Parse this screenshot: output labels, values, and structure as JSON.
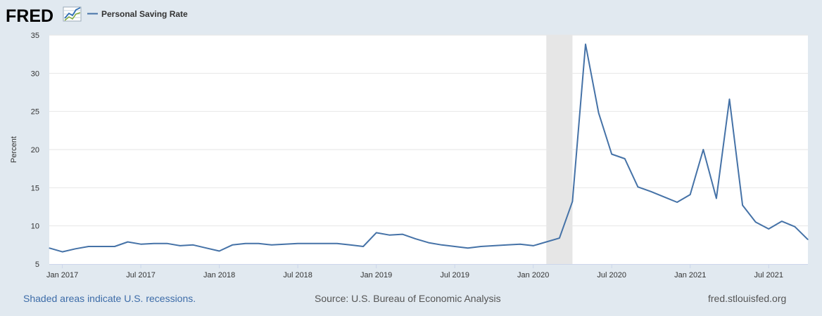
{
  "brand": {
    "logo_text": "FRED",
    "logo_icon": "trend-line-chart-icon"
  },
  "colors": {
    "background": "#e1e9f0",
    "plot_background": "#ffffff",
    "series": "#4572a7",
    "recession_shade": "#e6e6e6",
    "grid": "#e6e6e6",
    "link": "#3d6ca8",
    "text": "#333333",
    "muted": "#555555"
  },
  "footer": {
    "recession_note": "Shaded areas indicate U.S. recessions.",
    "source": "Source: U.S. Bureau of Economic Analysis",
    "site": "fred.stlouisfed.org"
  },
  "chart_data": {
    "type": "line",
    "title": "",
    "ylabel": "Percent",
    "xlabel": "",
    "xlim": [
      "2016-12",
      "2021-10"
    ],
    "ylim": [
      5,
      35
    ],
    "y_ticks": [
      5,
      10,
      15,
      20,
      25,
      30,
      35
    ],
    "x_ticks": [
      {
        "date": "2017-01",
        "label": "Jan 2017"
      },
      {
        "date": "2017-07",
        "label": "Jul 2017"
      },
      {
        "date": "2018-01",
        "label": "Jan 2018"
      },
      {
        "date": "2018-07",
        "label": "Jul 2018"
      },
      {
        "date": "2019-01",
        "label": "Jan 2019"
      },
      {
        "date": "2019-07",
        "label": "Jul 2019"
      },
      {
        "date": "2020-01",
        "label": "Jan 2020"
      },
      {
        "date": "2020-07",
        "label": "Jul 2020"
      },
      {
        "date": "2021-01",
        "label": "Jan 2021"
      },
      {
        "date": "2021-07",
        "label": "Jul 2021"
      }
    ],
    "grid": "horizontal",
    "legend": "top-left",
    "recessions": [
      {
        "start": "2020-02",
        "end": "2020-04"
      }
    ],
    "series": [
      {
        "name": "Personal Saving Rate",
        "x": [
          "2016-12",
          "2017-01",
          "2017-02",
          "2017-03",
          "2017-04",
          "2017-05",
          "2017-06",
          "2017-07",
          "2017-08",
          "2017-09",
          "2017-10",
          "2017-11",
          "2017-12",
          "2018-01",
          "2018-02",
          "2018-03",
          "2018-04",
          "2018-05",
          "2018-06",
          "2018-07",
          "2018-08",
          "2018-09",
          "2018-10",
          "2018-11",
          "2018-12",
          "2019-01",
          "2019-02",
          "2019-03",
          "2019-04",
          "2019-05",
          "2019-06",
          "2019-07",
          "2019-08",
          "2019-09",
          "2019-10",
          "2019-11",
          "2019-12",
          "2020-01",
          "2020-02",
          "2020-03",
          "2020-04",
          "2020-05",
          "2020-06",
          "2020-07",
          "2020-08",
          "2020-09",
          "2020-10",
          "2020-11",
          "2020-12",
          "2021-01",
          "2021-02",
          "2021-03",
          "2021-04",
          "2021-05",
          "2021-06",
          "2021-07",
          "2021-08",
          "2021-09",
          "2021-10"
        ],
        "values": [
          7.1,
          6.6,
          7.0,
          7.3,
          7.3,
          7.3,
          7.9,
          7.6,
          7.7,
          7.7,
          7.4,
          7.5,
          7.1,
          6.7,
          7.5,
          7.7,
          7.7,
          7.5,
          7.6,
          7.7,
          7.7,
          7.7,
          7.7,
          7.5,
          7.3,
          9.1,
          8.8,
          8.9,
          8.3,
          7.8,
          7.5,
          7.3,
          7.1,
          7.3,
          7.4,
          7.5,
          7.6,
          7.4,
          7.9,
          8.4,
          13.2,
          33.8,
          24.8,
          19.4,
          18.8,
          15.1,
          14.5,
          13.8,
          13.1,
          14.1,
          20.0,
          13.6,
          26.6,
          12.7,
          10.5,
          9.6,
          10.6,
          9.9,
          8.2
        ]
      }
    ]
  }
}
